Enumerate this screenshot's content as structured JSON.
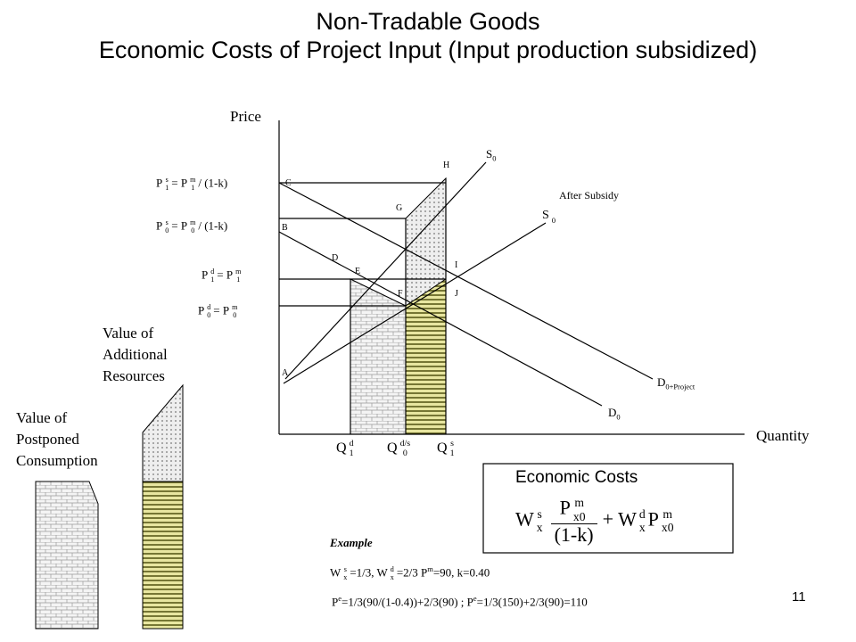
{
  "title": "Non-Tradable Goods",
  "subtitle": "Economic Costs of Project Input (Input production subsidized)",
  "axes": {
    "y_label": "Price",
    "x_label": "Quantity"
  },
  "curve_labels": [
    [
      {
        "t": "S"
      },
      {
        "t": "0",
        "s": "sub"
      }
    ],
    [
      {
        "t": "After Subsidy"
      }
    ],
    [
      {
        "t": "S"
      },
      {
        "sup": "",
        "sub": "0"
      }
    ],
    [
      {
        "t": "D"
      },
      {
        "t": "0+Project",
        "s": "sub"
      }
    ],
    [
      {
        "t": "D"
      },
      {
        "t": "0",
        "s": "sub"
      }
    ]
  ],
  "points": [
    "H",
    "C",
    "G",
    "B",
    "D",
    "E",
    "I",
    "F",
    "J",
    "A"
  ],
  "price_labels": [
    [
      {
        "t": "P"
      },
      {
        "sup": "s",
        "sub": "1"
      },
      {
        "t": "= P"
      },
      {
        "sup": "m",
        "sub": "1"
      },
      {
        "t": "/ (1-k)"
      }
    ],
    [
      {
        "t": "P"
      },
      {
        "sup": "s",
        "sub": "0"
      },
      {
        "t": "= P"
      },
      {
        "sup": "m",
        "sub": "0"
      },
      {
        "t": "/ (1-k)"
      }
    ],
    [
      {
        "t": "P"
      },
      {
        "sup": "d",
        "sub": "1"
      },
      {
        "t": "= P"
      },
      {
        "sup": "m",
        "sub": "1"
      }
    ],
    [
      {
        "t": "P"
      },
      {
        "sup": "d",
        "sub": "0"
      },
      {
        "t": "= P"
      },
      {
        "sup": "m",
        "sub": "0"
      }
    ]
  ],
  "quantity_labels": [
    [
      {
        "t": "Q"
      },
      {
        "sup": "d",
        "sub": "1"
      }
    ],
    [
      {
        "t": "Q"
      },
      {
        "sup": "d/s",
        "sub": "0"
      }
    ],
    [
      {
        "t": "Q"
      },
      {
        "sup": "s",
        "sub": "1"
      }
    ]
  ],
  "side_labels": [
    "Value of Additional Resources",
    "Value of Postponed Consumption"
  ],
  "box": {
    "title": "Economic Costs",
    "left": [
      {
        "t": "W"
      },
      {
        "sup": "s",
        "sub": "x"
      }
    ],
    "numerator": [
      {
        "t": "P"
      },
      {
        "sup": "m",
        "sub": "x0"
      }
    ],
    "denominator": "(1-k)",
    "right": [
      {
        "t": "+ W"
      },
      {
        "sup": "d",
        "sub": "x"
      },
      {
        "t": "P"
      },
      {
        "sup": "m",
        "sub": "x0"
      }
    ]
  },
  "example": {
    "heading": "Example",
    "line1": [
      {
        "t": "W"
      },
      {
        "sup": "s",
        "sub": "x"
      },
      {
        "t": "=1/3, W"
      },
      {
        "sup": "d",
        "sub": "x"
      },
      {
        "t": "=2/3 P"
      },
      {
        "t": "m",
        "s": "sup"
      },
      {
        "t": "=90, k=0.40"
      }
    ],
    "line2": [
      {
        "t": "P"
      },
      {
        "t": "e",
        "s": "sup"
      },
      {
        "t": "=1/3(90/(1-0.4))+2/3(90) ; P"
      },
      {
        "t": "e",
        "s": "sup"
      },
      {
        "t": "=1/3(150)+2/3(90)=110"
      }
    ]
  },
  "page_number": "11"
}
